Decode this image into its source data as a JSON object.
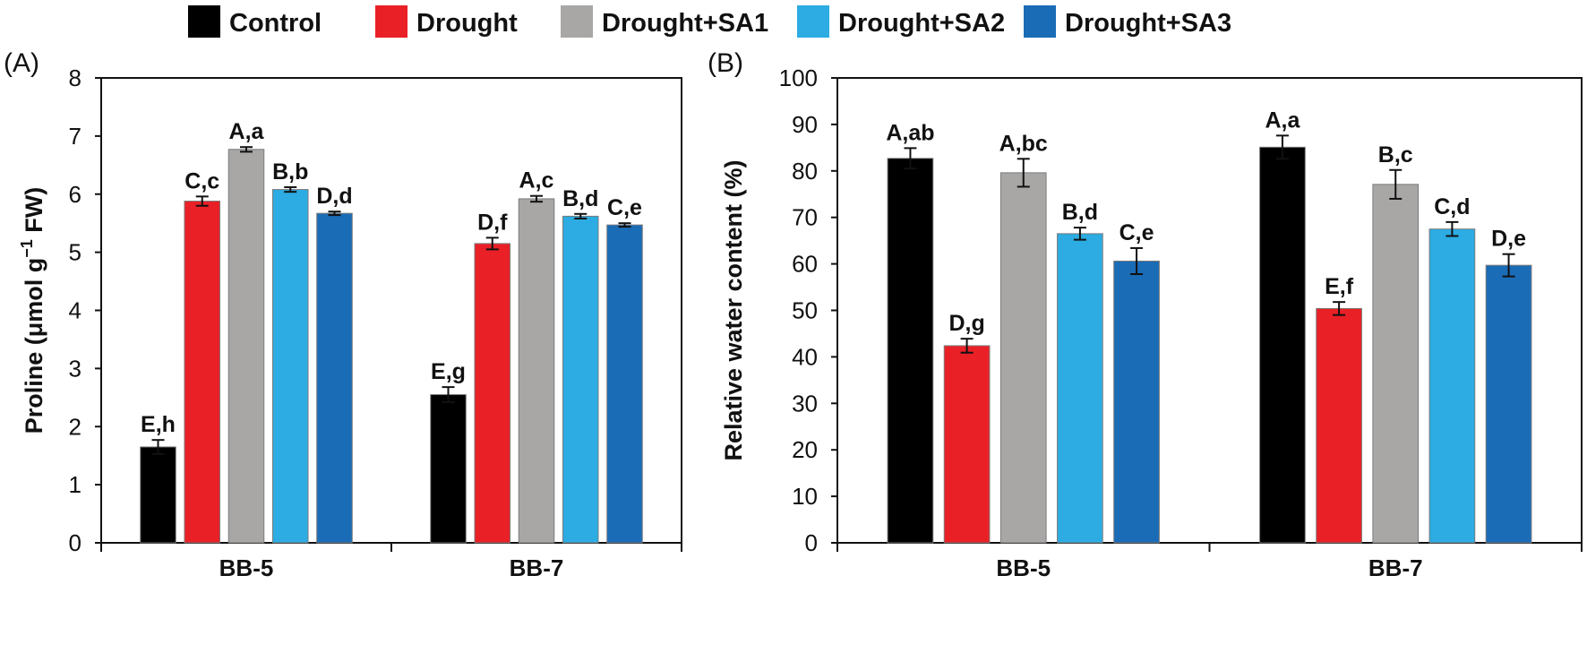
{
  "legend": {
    "items": [
      {
        "label": "Control",
        "color": "#000000"
      },
      {
        "label": "Drought",
        "color": "#ea2027"
      },
      {
        "label": "Drought+SA1",
        "color": "#a9a6a6"
      },
      {
        "label": "Drought+SA2",
        "color": "#2cace2"
      },
      {
        "label": "Drought+SA3",
        "color": "#1b6cb6"
      }
    ]
  },
  "chart_data": [
    {
      "panel_label": "(A)",
      "type": "bar",
      "ylabel_main": "Proline (μmol g",
      "ylabel_sup": "−1",
      "ylabel_tail": " FW)",
      "ylim": [
        0,
        8
      ],
      "yticks": [
        "0",
        "1",
        "2",
        "3",
        "4",
        "5",
        "6",
        "7",
        "8"
      ],
      "categories": [
        "BB-5",
        "BB-7"
      ],
      "series": [
        {
          "name": "Control",
          "values": [
            1.65,
            2.55
          ],
          "errors": [
            0.12,
            0.13
          ],
          "labels": [
            "E,h",
            "E,g"
          ]
        },
        {
          "name": "Drought",
          "values": [
            5.88,
            5.15
          ],
          "errors": [
            0.08,
            0.1
          ],
          "labels": [
            "C,c",
            "D,f"
          ]
        },
        {
          "name": "Drought+SA1",
          "values": [
            6.77,
            5.92
          ],
          "errors": [
            0.04,
            0.05
          ],
          "labels": [
            "A,a",
            "A,c"
          ]
        },
        {
          "name": "Drought+SA2",
          "values": [
            6.08,
            5.62
          ],
          "errors": [
            0.04,
            0.04
          ],
          "labels": [
            "B,b",
            "B,d"
          ]
        },
        {
          "name": "Drought+SA3",
          "values": [
            5.67,
            5.47
          ],
          "errors": [
            0.03,
            0.03
          ],
          "labels": [
            "D,d",
            "C,e"
          ]
        }
      ]
    },
    {
      "panel_label": "(B)",
      "type": "bar",
      "ylabel_main": "Relative water content (%)",
      "ylabel_sup": "",
      "ylabel_tail": "",
      "ylim": [
        0,
        100
      ],
      "yticks": [
        "0",
        "10",
        "20",
        "30",
        "40",
        "50",
        "60",
        "70",
        "80",
        "90",
        "100"
      ],
      "categories": [
        "BB-5",
        "BB-7"
      ],
      "series": [
        {
          "name": "Control",
          "values": [
            82.7,
            85.1
          ],
          "errors": [
            2.2,
            2.5
          ],
          "labels": [
            "A,ab",
            "A,a"
          ]
        },
        {
          "name": "Drought",
          "values": [
            42.4,
            50.4
          ],
          "errors": [
            1.5,
            1.4
          ],
          "labels": [
            "D,g",
            "E,f"
          ]
        },
        {
          "name": "Drought+SA1",
          "values": [
            79.6,
            77.1
          ],
          "errors": [
            3.0,
            3.1
          ],
          "labels": [
            "A,bc",
            "B,c"
          ]
        },
        {
          "name": "Drought+SA2",
          "values": [
            66.5,
            67.5
          ],
          "errors": [
            1.3,
            1.5
          ],
          "labels": [
            "B,d",
            "C,d"
          ]
        },
        {
          "name": "Drought+SA3",
          "values": [
            60.6,
            59.7
          ],
          "errors": [
            2.8,
            2.4
          ],
          "labels": [
            "C,e",
            "D,e"
          ]
        }
      ]
    }
  ]
}
